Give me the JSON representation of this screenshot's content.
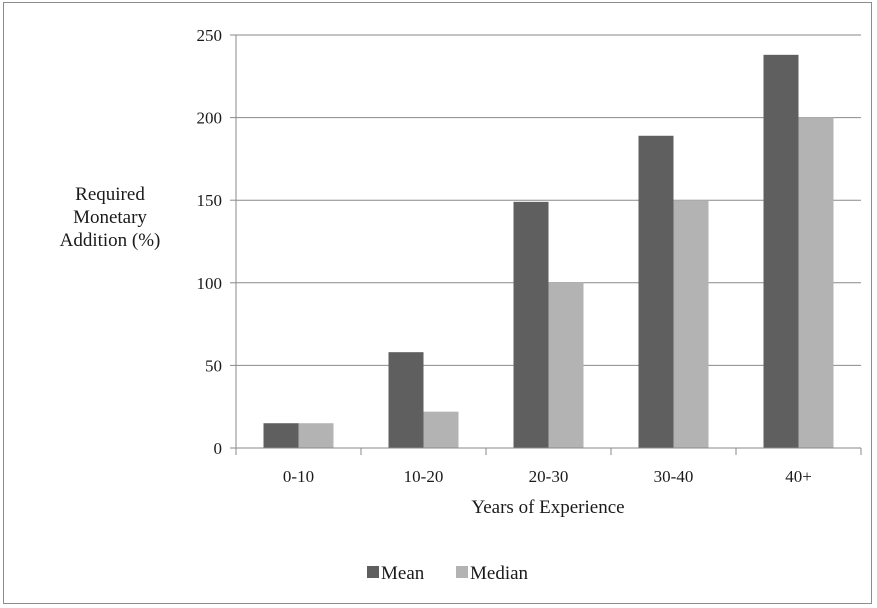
{
  "chart_data": {
    "type": "bar",
    "title": "",
    "xlabel": "Years of Experience",
    "ylabel": [
      "Required",
      "Monetary",
      "Addition (%)"
    ],
    "categories": [
      "0-10",
      "10-20",
      "20-30",
      "30-40",
      "40+"
    ],
    "series": [
      {
        "name": "Mean",
        "values": [
          15,
          58,
          149,
          189,
          238
        ],
        "color": "#5f5f5f"
      },
      {
        "name": "Median",
        "values": [
          15,
          22,
          100,
          150,
          200
        ],
        "color": "#b3b3b3"
      }
    ],
    "ylim": [
      0,
      250
    ],
    "yticks": [
      0,
      50,
      100,
      150,
      200,
      250
    ],
    "grid": true,
    "legend_position": "bottom"
  }
}
